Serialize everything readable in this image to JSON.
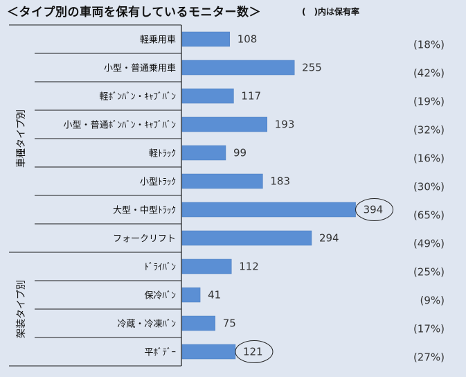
{
  "title": "＜タイプ別の車両を保有しているモニター数＞",
  "note": "(　)内は保有率",
  "chart_data": {
    "type": "bar",
    "orientation": "horizontal",
    "groups": [
      {
        "label": "車種タイプ別",
        "from": 0,
        "to": 7
      },
      {
        "label": "架装タイプ別",
        "from": 8,
        "to": 11
      }
    ],
    "categories": [
      "軽乗用車",
      "小型・普通乗用車",
      "軽ﾎﾞﾝﾊﾞﾝ・ｷｬﾌﾞﾊﾞﾝ",
      "小型・普通ﾎﾞﾝﾊﾞﾝ・ｷｬﾌﾞﾊﾞﾝ",
      "軽ﾄﾗｯｸ",
      "小型ﾄﾗｯｸ",
      "大型・中型ﾄﾗｯｸ",
      "フォークリフト",
      "ﾄﾞﾗｲﾊﾞﾝ",
      "保冷ﾊﾞﾝ",
      "冷蔵・冷凍ﾊﾞﾝ",
      "平ﾎﾞﾃﾞｰ"
    ],
    "values": [
      108,
      255,
      117,
      193,
      99,
      183,
      394,
      294,
      112,
      41,
      75,
      121
    ],
    "value_labels": [
      "108",
      "255",
      "117",
      "193",
      "99",
      "183",
      "394",
      "294",
      "112",
      "41",
      "75",
      "121"
    ],
    "rates": [
      "(18%)",
      "(42%)",
      "(19%)",
      "(32%)",
      "(16%)",
      "(30%)",
      "(65%)",
      "(49%)",
      "(25%)",
      "(9%)",
      "(17%)",
      "(27%)"
    ],
    "circled": [
      6,
      11
    ],
    "xlim": [
      0,
      400
    ],
    "grid": false,
    "colors": {
      "bar": "#5b8fd4",
      "bar_edge": "#4a7cc0",
      "rule": "#1a1a1a"
    }
  }
}
